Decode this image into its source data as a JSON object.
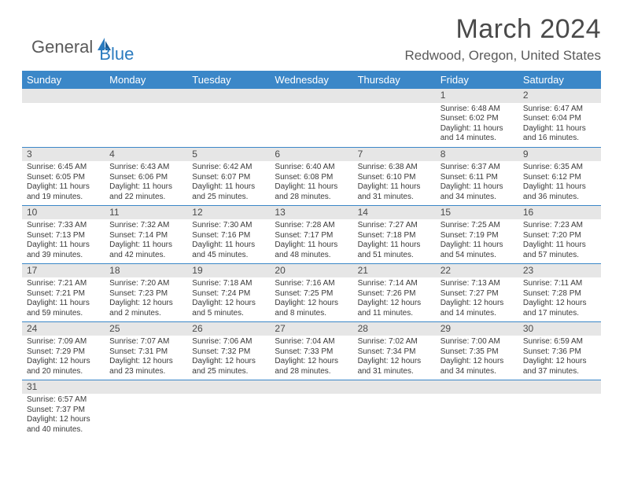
{
  "logo": {
    "part1": "General",
    "part2": "Blue"
  },
  "title": "March 2024",
  "location": "Redwood, Oregon, United States",
  "colors": {
    "header_bg": "#3b87c8",
    "header_text": "#ffffff",
    "daynum_bg": "#e6e6e6",
    "border": "#3b87c8",
    "text": "#3a3a3a",
    "title_text": "#4a4a4a",
    "logo_gray": "#5a5a5a",
    "logo_blue": "#2b7bbf"
  },
  "weekdays": [
    "Sunday",
    "Monday",
    "Tuesday",
    "Wednesday",
    "Thursday",
    "Friday",
    "Saturday"
  ],
  "weeks": [
    [
      null,
      null,
      null,
      null,
      null,
      {
        "n": "1",
        "sr": "6:48 AM",
        "ss": "6:02 PM",
        "dl": "11 hours and 14 minutes."
      },
      {
        "n": "2",
        "sr": "6:47 AM",
        "ss": "6:04 PM",
        "dl": "11 hours and 16 minutes."
      }
    ],
    [
      {
        "n": "3",
        "sr": "6:45 AM",
        "ss": "6:05 PM",
        "dl": "11 hours and 19 minutes."
      },
      {
        "n": "4",
        "sr": "6:43 AM",
        "ss": "6:06 PM",
        "dl": "11 hours and 22 minutes."
      },
      {
        "n": "5",
        "sr": "6:42 AM",
        "ss": "6:07 PM",
        "dl": "11 hours and 25 minutes."
      },
      {
        "n": "6",
        "sr": "6:40 AM",
        "ss": "6:08 PM",
        "dl": "11 hours and 28 minutes."
      },
      {
        "n": "7",
        "sr": "6:38 AM",
        "ss": "6:10 PM",
        "dl": "11 hours and 31 minutes."
      },
      {
        "n": "8",
        "sr": "6:37 AM",
        "ss": "6:11 PM",
        "dl": "11 hours and 34 minutes."
      },
      {
        "n": "9",
        "sr": "6:35 AM",
        "ss": "6:12 PM",
        "dl": "11 hours and 36 minutes."
      }
    ],
    [
      {
        "n": "10",
        "sr": "7:33 AM",
        "ss": "7:13 PM",
        "dl": "11 hours and 39 minutes."
      },
      {
        "n": "11",
        "sr": "7:32 AM",
        "ss": "7:14 PM",
        "dl": "11 hours and 42 minutes."
      },
      {
        "n": "12",
        "sr": "7:30 AM",
        "ss": "7:16 PM",
        "dl": "11 hours and 45 minutes."
      },
      {
        "n": "13",
        "sr": "7:28 AM",
        "ss": "7:17 PM",
        "dl": "11 hours and 48 minutes."
      },
      {
        "n": "14",
        "sr": "7:27 AM",
        "ss": "7:18 PM",
        "dl": "11 hours and 51 minutes."
      },
      {
        "n": "15",
        "sr": "7:25 AM",
        "ss": "7:19 PM",
        "dl": "11 hours and 54 minutes."
      },
      {
        "n": "16",
        "sr": "7:23 AM",
        "ss": "7:20 PM",
        "dl": "11 hours and 57 minutes."
      }
    ],
    [
      {
        "n": "17",
        "sr": "7:21 AM",
        "ss": "7:21 PM",
        "dl": "11 hours and 59 minutes."
      },
      {
        "n": "18",
        "sr": "7:20 AM",
        "ss": "7:23 PM",
        "dl": "12 hours and 2 minutes."
      },
      {
        "n": "19",
        "sr": "7:18 AM",
        "ss": "7:24 PM",
        "dl": "12 hours and 5 minutes."
      },
      {
        "n": "20",
        "sr": "7:16 AM",
        "ss": "7:25 PM",
        "dl": "12 hours and 8 minutes."
      },
      {
        "n": "21",
        "sr": "7:14 AM",
        "ss": "7:26 PM",
        "dl": "12 hours and 11 minutes."
      },
      {
        "n": "22",
        "sr": "7:13 AM",
        "ss": "7:27 PM",
        "dl": "12 hours and 14 minutes."
      },
      {
        "n": "23",
        "sr": "7:11 AM",
        "ss": "7:28 PM",
        "dl": "12 hours and 17 minutes."
      }
    ],
    [
      {
        "n": "24",
        "sr": "7:09 AM",
        "ss": "7:29 PM",
        "dl": "12 hours and 20 minutes."
      },
      {
        "n": "25",
        "sr": "7:07 AM",
        "ss": "7:31 PM",
        "dl": "12 hours and 23 minutes."
      },
      {
        "n": "26",
        "sr": "7:06 AM",
        "ss": "7:32 PM",
        "dl": "12 hours and 25 minutes."
      },
      {
        "n": "27",
        "sr": "7:04 AM",
        "ss": "7:33 PM",
        "dl": "12 hours and 28 minutes."
      },
      {
        "n": "28",
        "sr": "7:02 AM",
        "ss": "7:34 PM",
        "dl": "12 hours and 31 minutes."
      },
      {
        "n": "29",
        "sr": "7:00 AM",
        "ss": "7:35 PM",
        "dl": "12 hours and 34 minutes."
      },
      {
        "n": "30",
        "sr": "6:59 AM",
        "ss": "7:36 PM",
        "dl": "12 hours and 37 minutes."
      }
    ],
    [
      {
        "n": "31",
        "sr": "6:57 AM",
        "ss": "7:37 PM",
        "dl": "12 hours and 40 minutes."
      },
      null,
      null,
      null,
      null,
      null,
      null
    ]
  ],
  "labels": {
    "sunrise": "Sunrise:",
    "sunset": "Sunset:",
    "daylight": "Daylight:"
  }
}
